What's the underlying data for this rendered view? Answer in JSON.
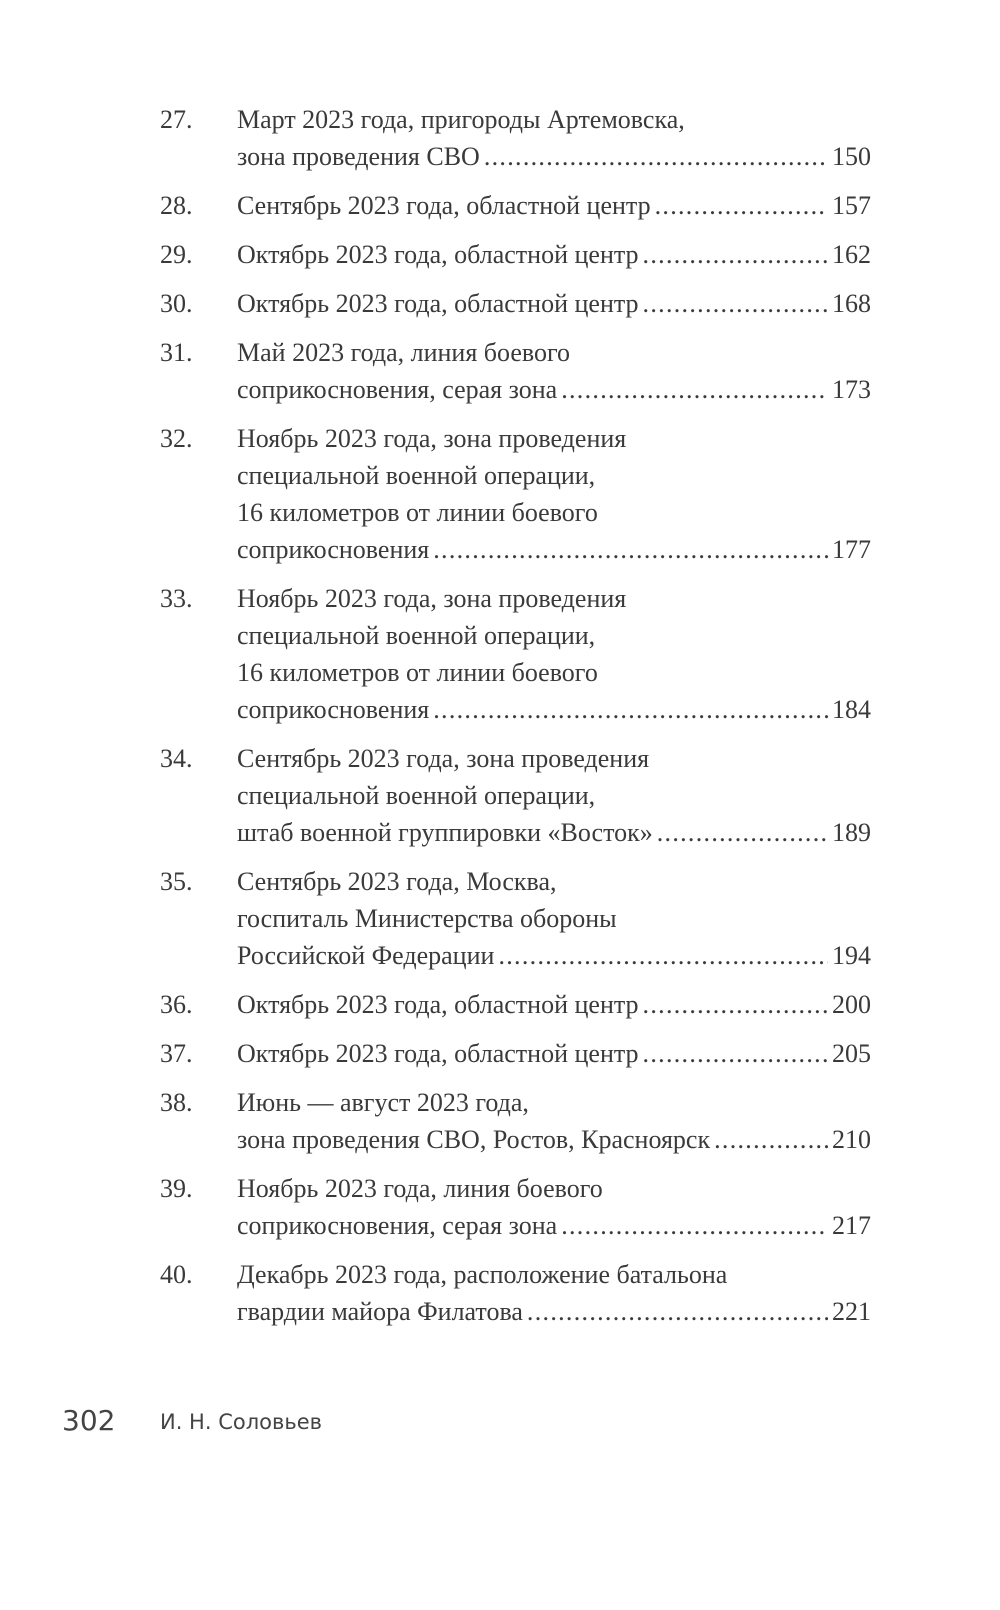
{
  "toc": [
    {
      "number": "27.",
      "lines": [
        "Март 2023 года, пригороды Артемовска,",
        "зона проведения СВО"
      ],
      "page": "150"
    },
    {
      "number": "28.",
      "lines": [
        "Сентябрь 2023 года, областной центр"
      ],
      "page": "157"
    },
    {
      "number": "29.",
      "lines": [
        "Октябрь 2023 года, областной центр"
      ],
      "page": "162"
    },
    {
      "number": "30.",
      "lines": [
        "Октябрь 2023 года, областной центр"
      ],
      "page": "168"
    },
    {
      "number": "31.",
      "lines": [
        "Май 2023 года, линия боевого",
        "соприкосновения, серая зона"
      ],
      "page": "173"
    },
    {
      "number": "32.",
      "lines": [
        "Ноябрь 2023 года, зона проведения",
        "специальной военной операции,",
        "16 километров от линии боевого",
        "соприкосновения"
      ],
      "page": "177"
    },
    {
      "number": "33.",
      "lines": [
        "Ноябрь 2023 года, зона проведения",
        "специальной военной операции,",
        "16 километров от линии боевого",
        "соприкосновения"
      ],
      "page": "184"
    },
    {
      "number": "34.",
      "lines": [
        "Сентябрь 2023 года, зона проведения",
        "специальной военной операции,",
        "штаб военной группировки «Восток»"
      ],
      "page": "189"
    },
    {
      "number": "35.",
      "lines": [
        "Сентябрь 2023 года, Москва,",
        "госпиталь Министерства обороны",
        "Российской Федерации"
      ],
      "page": "194"
    },
    {
      "number": "36.",
      "lines": [
        "Октябрь 2023 года, областной центр"
      ],
      "page": "200"
    },
    {
      "number": "37.",
      "lines": [
        "Октябрь 2023 года, областной центр"
      ],
      "page": "205"
    },
    {
      "number": "38.",
      "lines": [
        "Июнь — август 2023 года,",
        "зона проведения СВО, Ростов, Красноярск"
      ],
      "page": "210"
    },
    {
      "number": "39.",
      "lines": [
        "Ноябрь 2023 года, линия боевого",
        "соприкосновения, серая зона"
      ],
      "page": "217"
    },
    {
      "number": "40.",
      "lines": [
        "Декабрь 2023 года, расположение батальона",
        "гвардии майора Филатова"
      ],
      "page": "221"
    }
  ],
  "footer": {
    "page_number": "302",
    "author": "И. Н. Соловьев"
  }
}
